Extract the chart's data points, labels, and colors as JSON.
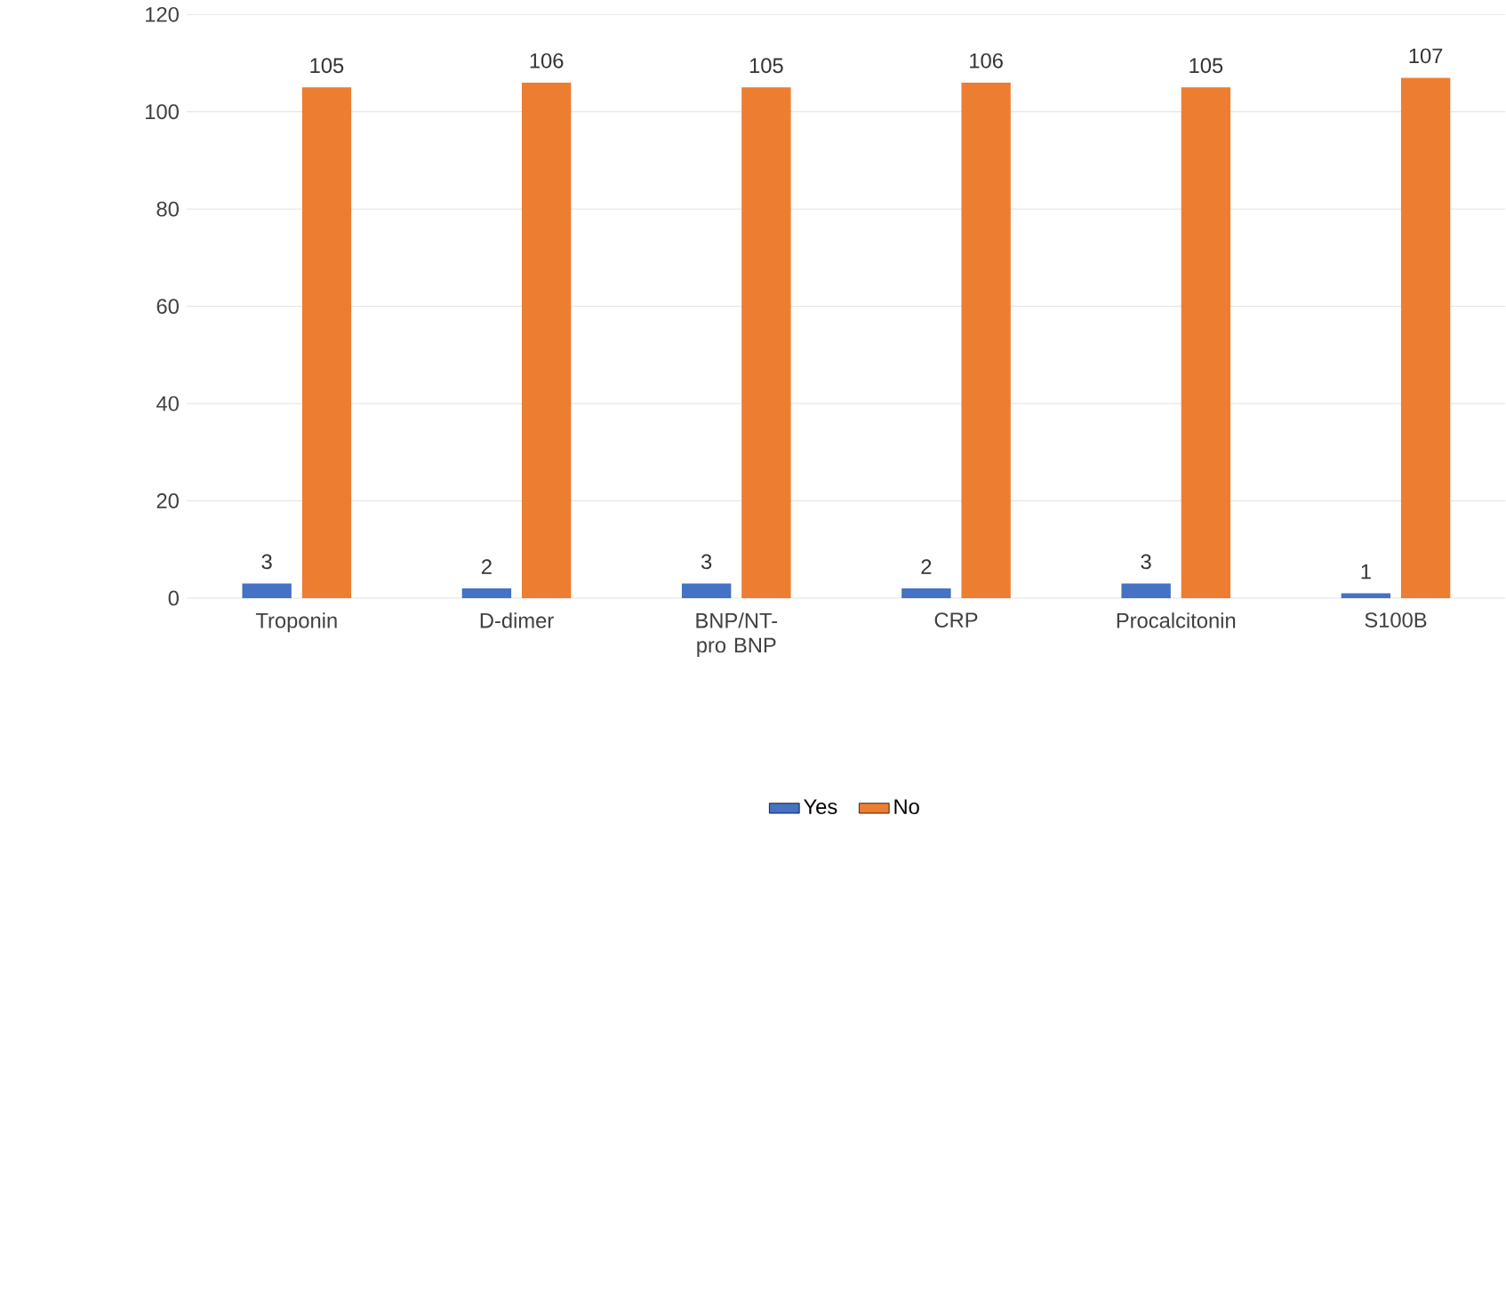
{
  "chart_data": {
    "type": "bar",
    "categories": [
      "Troponin",
      "D-dimer",
      "BNP/NT-pro BNP",
      "CRP",
      "Procalcitonin",
      "S100B"
    ],
    "series": [
      {
        "name": "Yes",
        "color": "#4472c4",
        "values": [
          3,
          2,
          3,
          2,
          3,
          1
        ]
      },
      {
        "name": "No",
        "color": "#ed7d31",
        "values": [
          105,
          106,
          105,
          106,
          105,
          107
        ]
      }
    ],
    "ylim": [
      0,
      120
    ],
    "yticks": [
      0,
      20,
      40,
      60,
      80,
      100,
      120
    ],
    "grid": "y",
    "legend": "bottom",
    "data_labels": true
  }
}
